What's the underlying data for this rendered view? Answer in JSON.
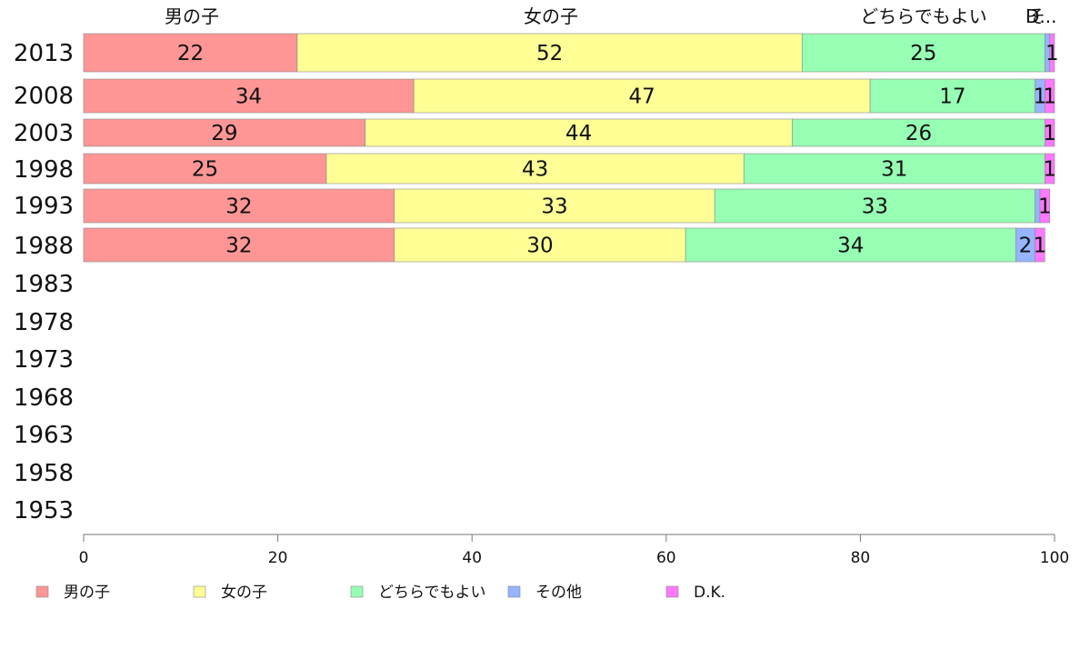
{
  "chart_data": {
    "type": "bar",
    "orientation": "horizontal",
    "stacked": true,
    "categories": [
      "2013",
      "2008",
      "2003",
      "1998",
      "1993",
      "1988",
      "1983",
      "1978",
      "1973",
      "1968",
      "1963",
      "1958",
      "1953"
    ],
    "series": [
      {
        "name": "男の子",
        "color": "#ff9696",
        "values": [
          22,
          34,
          29,
          25,
          32,
          32,
          null,
          null,
          null,
          null,
          null,
          null,
          null
        ]
      },
      {
        "name": "女の子",
        "color": "#ffff96",
        "values": [
          52,
          47,
          44,
          43,
          33,
          30,
          null,
          null,
          null,
          null,
          null,
          null,
          null
        ]
      },
      {
        "name": "どちらでもよい",
        "color": "#96ffb4",
        "values": [
          25,
          17,
          26,
          31,
          33,
          34,
          null,
          null,
          null,
          null,
          null,
          null,
          null
        ]
      },
      {
        "name": "その他",
        "color": "#96b4ff",
        "values": [
          0.5,
          1,
          0,
          0,
          0.5,
          2,
          null,
          null,
          null,
          null,
          null,
          null,
          null
        ]
      },
      {
        "name": "D.K.",
        "color": "#ff78ff",
        "values": [
          1,
          1,
          1,
          1,
          1,
          1,
          null,
          null,
          null,
          null,
          null,
          null,
          null
        ]
      }
    ],
    "segment_labels": [
      [
        "22",
        "52",
        "25",
        "",
        "1"
      ],
      [
        "34",
        "47",
        "17",
        "1",
        "1"
      ],
      [
        "29",
        "44",
        "26",
        "",
        "1"
      ],
      [
        "25",
        "43",
        "31",
        "",
        "1"
      ],
      [
        "32",
        "33",
        "33",
        "",
        "1"
      ],
      [
        "32",
        "30",
        "34",
        "2",
        "1"
      ]
    ],
    "header_labels": [
      "男の子",
      "女の子",
      "どちらでもよい",
      "その他",
      "D.K."
    ],
    "header_display": [
      "男の子",
      "女の子",
      "どちらでもよい",
      "そ",
      "D..."
    ],
    "xlim": [
      0,
      100
    ],
    "xticks": [
      0,
      20,
      40,
      60,
      80,
      100
    ],
    "legend_placement": "bottom",
    "grid": false
  }
}
